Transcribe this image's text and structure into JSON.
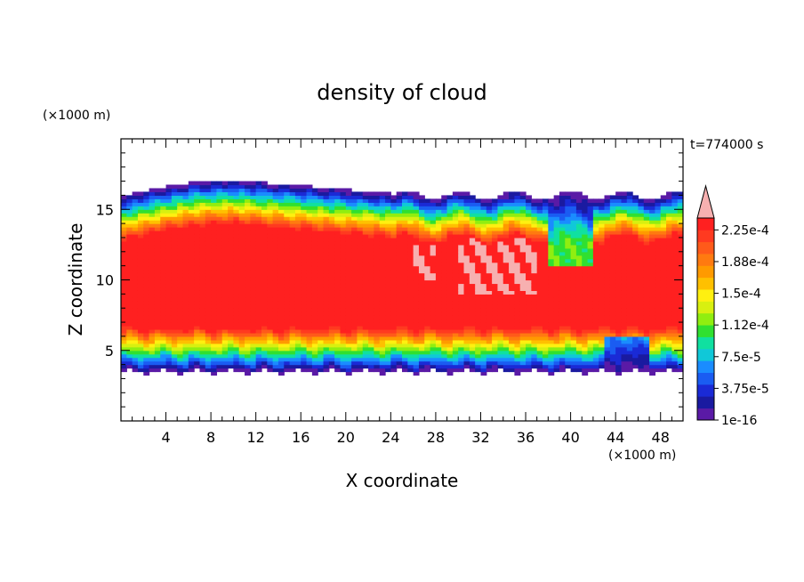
{
  "chart_data": {
    "type": "heatmap",
    "title": "density of cloud",
    "xlabel": "X coordinate",
    "ylabel": "Z coordinate",
    "x_unit": "(×1000 m)",
    "y_unit": "(×1000 m)",
    "time_label": "t=774000 s",
    "xlim": [
      0,
      50
    ],
    "ylim": [
      0,
      20
    ],
    "x_ticks": [
      4,
      8,
      12,
      16,
      20,
      24,
      28,
      32,
      36,
      40,
      44,
      48
    ],
    "y_ticks": [
      5,
      10,
      15
    ],
    "colorbar": {
      "tick_labels": [
        "1e-16",
        "3.75e-5",
        "7.5e-5",
        "1.12e-4",
        "1.5e-4",
        "1.88e-4",
        "2.25e-4"
      ],
      "colors": [
        "#5a1aa6",
        "#1a1aa0",
        "#1a2ad6",
        "#1a5cf2",
        "#1a8cff",
        "#10c8d8",
        "#10e0a0",
        "#30e030",
        "#90ee10",
        "#d8f010",
        "#fff010",
        "#ffc000",
        "#ff9a00",
        "#ff7a10",
        "#ff5a1a",
        "#ff3a20",
        "#ff2020"
      ],
      "extend_color": "#f7b0b0"
    },
    "cloud_layer": {
      "z_bottom": 3.5,
      "z_top_left": 16.2,
      "z_top_right": 16.0,
      "z_core_low": 7,
      "z_core_high": 14
    },
    "grid": false,
    "legend_position": "right"
  }
}
